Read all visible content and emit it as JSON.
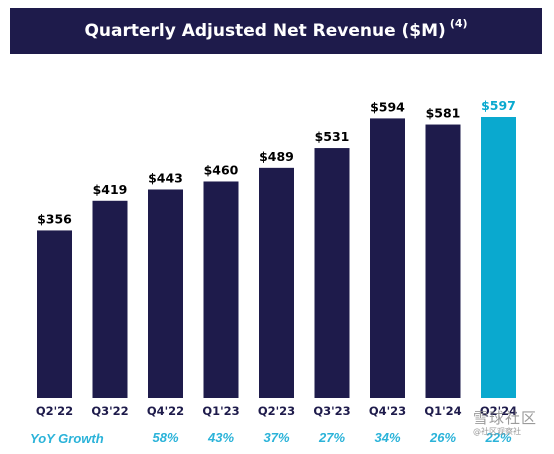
{
  "title": "Quarterly Adjusted Net Revenue ($M)",
  "title_footnote": "(4)",
  "colors": {
    "bar": "#1e1b4b",
    "highlight_bar": "#0aa9cf",
    "yoy_text": "#2bb3d9",
    "label_text": "#000000"
  },
  "chart_data": {
    "type": "bar",
    "title": "Quarterly Adjusted Net Revenue ($M)",
    "categories": [
      "Q2'22",
      "Q3'22",
      "Q4'22",
      "Q1'23",
      "Q2'23",
      "Q3'23",
      "Q4'23",
      "Q1'24",
      "Q2'24"
    ],
    "values": [
      356,
      419,
      443,
      460,
      489,
      531,
      594,
      581,
      597
    ],
    "value_labels": [
      "$356",
      "$419",
      "$443",
      "$460",
      "$489",
      "$531",
      "$594",
      "$581",
      "$597"
    ],
    "highlight_index": 8,
    "ylim": [
      0,
      597
    ],
    "grid": false,
    "yoy_growth": {
      "label": "YoY Growth",
      "values": [
        "",
        "",
        "58%",
        "43%",
        "37%",
        "27%",
        "34%",
        "26%",
        "22%"
      ]
    }
  },
  "watermark": {
    "line1": "雪球社区",
    "line2": "@社区观察社"
  }
}
